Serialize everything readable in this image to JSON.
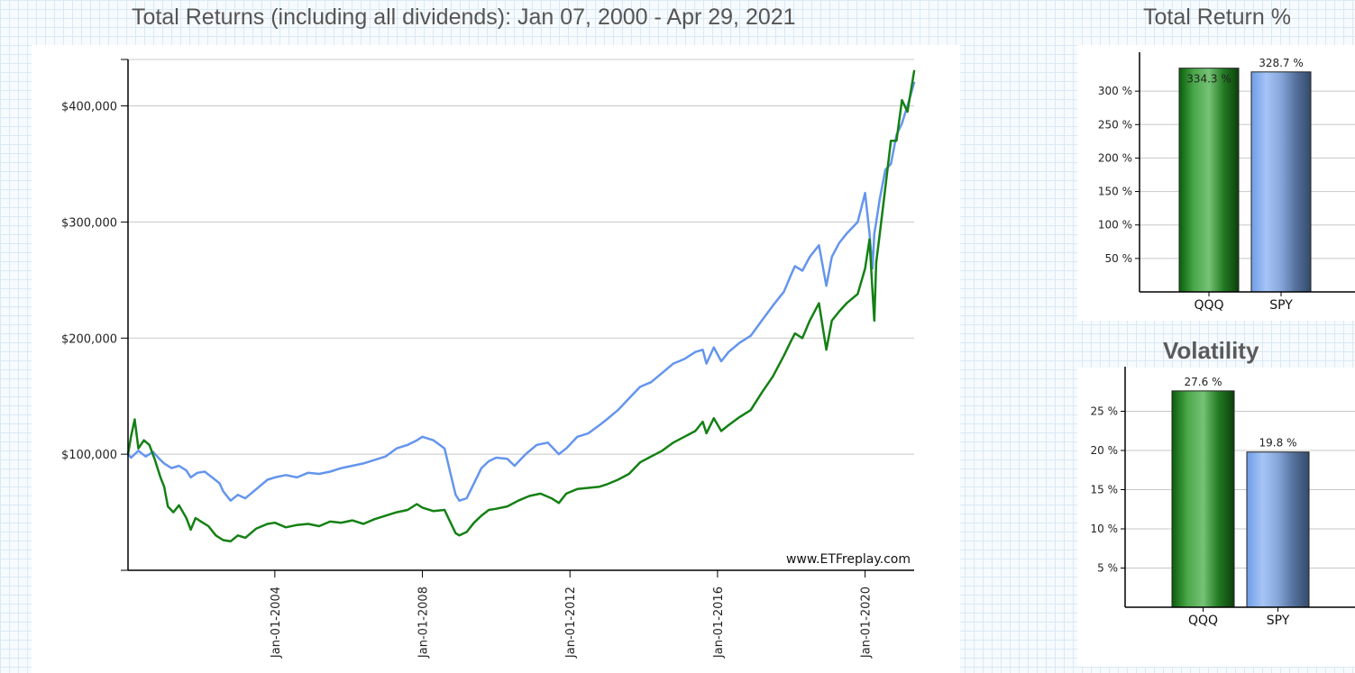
{
  "titles": {
    "main": "Total Returns (including all dividends): Jan 07, 2000 - Apr 29, 2021",
    "total_return": "Total Return %",
    "volatility": "Volatility"
  },
  "colors": {
    "qqq": "#148014",
    "spy": "#6495ed",
    "grid": "#c8c8c8",
    "axis": "#000000"
  },
  "chart_data": [
    {
      "type": "line",
      "title": "Total Returns (including all dividends): Jan 07, 2000 - Apr 29, 2021",
      "xlabel": "",
      "ylabel": "",
      "xlim": [
        2000.02,
        2021.33
      ],
      "ylim": [
        0,
        440000
      ],
      "y_ticks": [
        100000,
        200000,
        300000,
        400000
      ],
      "y_tick_labels": [
        "$100,000",
        "$200,000",
        "$300,000",
        "$400,000"
      ],
      "x_ticks": [
        2004.0,
        2008.0,
        2012.0,
        2016.0,
        2020.0
      ],
      "x_tick_labels": [
        "Jan-01-2004",
        "Jan-01-2008",
        "Jan-01-2012",
        "Jan-01-2016",
        "Jan-01-2020"
      ],
      "grid": true,
      "watermark": "www.ETFreplay.com",
      "series": [
        {
          "name": "QQQ",
          "color": "#148014",
          "x": [
            2000.02,
            2000.1,
            2000.2,
            2000.3,
            2000.45,
            2000.6,
            2000.75,
            2000.9,
            2001.0,
            2001.1,
            2001.25,
            2001.4,
            2001.6,
            2001.72,
            2001.85,
            2002.0,
            2002.2,
            2002.4,
            2002.6,
            2002.8,
            2003.0,
            2003.2,
            2003.5,
            2003.8,
            2004.0,
            2004.3,
            2004.6,
            2004.9,
            2005.2,
            2005.5,
            2005.8,
            2006.1,
            2006.4,
            2006.7,
            2007.0,
            2007.3,
            2007.6,
            2007.85,
            2008.0,
            2008.3,
            2008.6,
            2008.75,
            2008.9,
            2009.0,
            2009.2,
            2009.4,
            2009.6,
            2009.8,
            2010.0,
            2010.3,
            2010.6,
            2010.9,
            2011.2,
            2011.5,
            2011.7,
            2011.9,
            2012.2,
            2012.5,
            2012.8,
            2013.0,
            2013.3,
            2013.6,
            2013.9,
            2014.2,
            2014.5,
            2014.8,
            2015.1,
            2015.4,
            2015.6,
            2015.7,
            2015.9,
            2016.1,
            2016.3,
            2016.6,
            2016.9,
            2017.2,
            2017.5,
            2017.8,
            2018.0,
            2018.1,
            2018.3,
            2018.5,
            2018.75,
            2018.95,
            2019.1,
            2019.3,
            2019.5,
            2019.8,
            2020.0,
            2020.12,
            2020.2,
            2020.25,
            2020.3,
            2020.4,
            2020.55,
            2020.7,
            2020.85,
            2021.0,
            2021.15,
            2021.33
          ],
          "values": [
            100000,
            115000,
            130000,
            105000,
            112000,
            108000,
            95000,
            80000,
            72000,
            55000,
            50000,
            56000,
            45000,
            35000,
            45000,
            42000,
            38000,
            30000,
            26000,
            25000,
            30000,
            28000,
            36000,
            40000,
            41000,
            37000,
            39000,
            40000,
            38000,
            42000,
            41000,
            43000,
            40000,
            44000,
            47000,
            50000,
            52000,
            57000,
            54000,
            51000,
            52000,
            42000,
            32000,
            30000,
            33000,
            41000,
            47000,
            52000,
            53000,
            55000,
            60000,
            64000,
            66000,
            62000,
            58000,
            66000,
            70000,
            71000,
            72000,
            74000,
            78000,
            83000,
            93000,
            98000,
            103000,
            110000,
            115000,
            120000,
            128000,
            118000,
            131000,
            120000,
            125000,
            132000,
            138000,
            153000,
            167000,
            185000,
            198000,
            204000,
            200000,
            215000,
            230000,
            190000,
            215000,
            223000,
            230000,
            238000,
            260000,
            285000,
            240000,
            215000,
            265000,
            290000,
            330000,
            370000,
            370000,
            405000,
            395000,
            430000
          ]
        },
        {
          "name": "SPY",
          "color": "#6495ed",
          "x": [
            2000.02,
            2000.1,
            2000.3,
            2000.5,
            2000.7,
            2000.9,
            2001.0,
            2001.2,
            2001.4,
            2001.6,
            2001.72,
            2001.9,
            2002.1,
            2002.3,
            2002.5,
            2002.6,
            2002.8,
            2003.0,
            2003.2,
            2003.5,
            2003.8,
            2004.0,
            2004.3,
            2004.6,
            2004.9,
            2005.2,
            2005.5,
            2005.8,
            2006.1,
            2006.4,
            2006.7,
            2007.0,
            2007.3,
            2007.6,
            2007.85,
            2008.0,
            2008.3,
            2008.6,
            2008.75,
            2008.9,
            2009.0,
            2009.2,
            2009.4,
            2009.6,
            2009.8,
            2010.0,
            2010.3,
            2010.5,
            2010.8,
            2011.1,
            2011.4,
            2011.7,
            2011.9,
            2012.2,
            2012.5,
            2012.8,
            2013.0,
            2013.3,
            2013.6,
            2013.9,
            2014.2,
            2014.5,
            2014.8,
            2015.1,
            2015.4,
            2015.6,
            2015.7,
            2015.9,
            2016.1,
            2016.3,
            2016.6,
            2016.9,
            2017.2,
            2017.5,
            2017.8,
            2018.0,
            2018.1,
            2018.3,
            2018.5,
            2018.75,
            2018.95,
            2019.1,
            2019.3,
            2019.5,
            2019.8,
            2020.0,
            2020.12,
            2020.2,
            2020.25,
            2020.3,
            2020.4,
            2020.55,
            2020.7,
            2020.85,
            2021.0,
            2021.15,
            2021.33
          ],
          "values": [
            100000,
            97000,
            103000,
            98000,
            102000,
            95000,
            92000,
            88000,
            90000,
            86000,
            80000,
            84000,
            85000,
            80000,
            75000,
            68000,
            60000,
            65000,
            62000,
            70000,
            78000,
            80000,
            82000,
            80000,
            84000,
            83000,
            85000,
            88000,
            90000,
            92000,
            95000,
            98000,
            105000,
            108000,
            112000,
            115000,
            112000,
            105000,
            85000,
            65000,
            60000,
            62000,
            75000,
            88000,
            94000,
            97000,
            96000,
            90000,
            100000,
            108000,
            110000,
            100000,
            105000,
            115000,
            118000,
            125000,
            130000,
            138000,
            148000,
            158000,
            162000,
            170000,
            178000,
            182000,
            188000,
            190000,
            178000,
            192000,
            180000,
            188000,
            196000,
            202000,
            215000,
            228000,
            240000,
            255000,
            262000,
            258000,
            270000,
            280000,
            245000,
            270000,
            282000,
            290000,
            300000,
            325000,
            290000,
            260000,
            290000,
            300000,
            320000,
            345000,
            350000,
            375000,
            385000,
            400000,
            420000
          ]
        }
      ]
    },
    {
      "type": "bar",
      "title": "Total Return %",
      "categories": [
        "QQQ",
        "SPY"
      ],
      "values": [
        334.3,
        328.7
      ],
      "value_labels": [
        "334.3 %",
        "328.7 %"
      ],
      "ylim": [
        0,
        350
      ],
      "y_ticks": [
        50,
        100,
        150,
        200,
        250,
        300
      ],
      "y_tick_labels": [
        "50 %",
        "100 %",
        "150 %",
        "200 %",
        "250 %",
        "300 %"
      ],
      "xlabel": "",
      "ylabel": ""
    },
    {
      "type": "bar",
      "title": "Volatility",
      "categories": [
        "QQQ",
        "SPY"
      ],
      "values": [
        27.6,
        19.8
      ],
      "value_labels": [
        "27.6 %",
        "19.8 %"
      ],
      "ylim": [
        0,
        30
      ],
      "y_ticks": [
        5,
        10,
        15,
        20,
        25
      ],
      "y_tick_labels": [
        "5 %",
        "10 %",
        "15 %",
        "20 %",
        "25 %"
      ],
      "xlabel": "",
      "ylabel": ""
    }
  ]
}
